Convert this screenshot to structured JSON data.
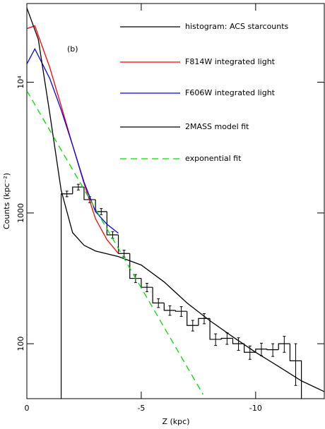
{
  "chart_data": {
    "type": "line",
    "annotation": "(b)",
    "xlabel": "Z (kpc)",
    "ylabel": "Counts (kpc⁻²)",
    "xlim": [
      0,
      -13
    ],
    "xticks": [
      0,
      -5,
      -10
    ],
    "ylim": [
      38,
      40000
    ],
    "yticks": [
      100,
      1000,
      {
        "value": 10000,
        "label": "10⁴"
      }
    ],
    "log_y": true,
    "grid": false,
    "series": [
      {
        "name": "histogram: ACS starcounts",
        "color": "#000000",
        "kind": "histogram",
        "bins": [
          -1.5,
          -2,
          -2.5,
          -3,
          -3.5,
          -4,
          -4.5,
          -5,
          -5.5,
          -6,
          -6.5,
          -7,
          -7.5,
          -8,
          -8.5,
          -9,
          -9.5,
          -10,
          -10.5,
          -11,
          -11.5,
          -12
        ],
        "values": [
          1400,
          1580,
          1265,
          1025,
          680,
          490,
          316,
          270,
          205,
          180,
          177,
          138,
          156,
          108,
          110,
          100,
          86,
          91,
          90,
          100,
          74
        ],
        "errors": [
          70,
          80,
          65,
          55,
          40,
          30,
          22,
          20,
          16,
          15,
          15,
          13,
          14,
          11,
          11,
          11,
          10,
          10,
          10,
          14,
          26
        ]
      },
      {
        "name": "F814W integrated light",
        "color": "#ff0000",
        "x": [
          0,
          -0.35,
          -1,
          -1.5,
          -2,
          -2.5,
          -3,
          -3.5,
          -4
        ],
        "values": [
          25700,
          27000,
          13000,
          6600,
          3300,
          1680,
          905,
          625,
          490
        ]
      },
      {
        "name": "F606W integrated light",
        "color": "#0000ff",
        "x": [
          0,
          -0.35,
          -1,
          -1.5,
          -2,
          -2.5,
          -3,
          -3.5,
          -4
        ],
        "values": [
          13800,
          18000,
          10700,
          6150,
          3300,
          1720,
          1025,
          820,
          700
        ]
      },
      {
        "name": "2MASS model fit",
        "color": "#000000",
        "x": [
          0,
          -0.5,
          -1,
          -1.5,
          -2,
          -2.5,
          -3,
          -4,
          -5,
          -6,
          -7,
          -8,
          -9,
          -10,
          -11,
          -12,
          -13
        ],
        "values": [
          37000,
          21300,
          5800,
          1490,
          707,
          566,
          512,
          464,
          400,
          297,
          205,
          150,
          113,
          86,
          67,
          52,
          43
        ]
      },
      {
        "name": "exponential fit",
        "color": "#00dd00",
        "dashed": true,
        "x": [
          0,
          -7.7
        ],
        "values": [
          8600,
          41
        ]
      }
    ]
  }
}
